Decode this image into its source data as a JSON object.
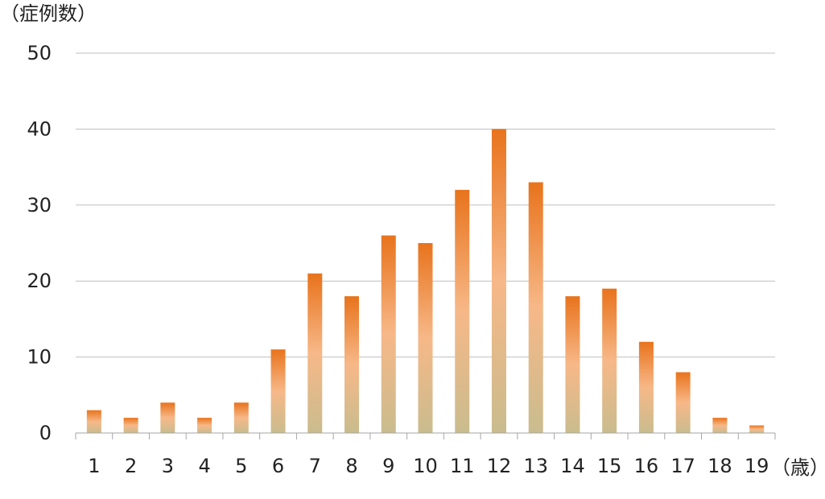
{
  "chart_data": {
    "type": "bar",
    "ylabel": "（症例数）",
    "xlabel": "（歳）",
    "ylim": [
      0,
      50
    ],
    "yticks": [
      0,
      10,
      20,
      30,
      40,
      50
    ],
    "grid": true,
    "categories": [
      "1",
      "2",
      "3",
      "4",
      "5",
      "6",
      "7",
      "8",
      "9",
      "10",
      "11",
      "12",
      "13",
      "14",
      "15",
      "16",
      "17",
      "18",
      "19"
    ],
    "values": [
      3,
      2,
      4,
      2,
      4,
      11,
      21,
      18,
      26,
      25,
      32,
      40,
      33,
      18,
      19,
      12,
      8,
      2,
      1
    ],
    "colors": {
      "bar_top": "#E8731C",
      "bar_mid": "#F7B888",
      "bar_bottom": "#C9BC8E",
      "grid": "#BFBFBF",
      "axis": "#A6A6A6"
    }
  }
}
